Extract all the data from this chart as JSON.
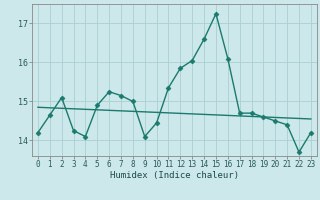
{
  "xlabel": "Humidex (Indice chaleur)",
  "bg_color": "#cce8ea",
  "line_color": "#1a7a6e",
  "grid_color": "#aacfd0",
  "spine_color": "#888888",
  "xlim": [
    -0.5,
    23.5
  ],
  "ylim": [
    13.6,
    17.5
  ],
  "yticks": [
    14,
    15,
    16,
    17
  ],
  "xticks": [
    0,
    1,
    2,
    3,
    4,
    5,
    6,
    7,
    8,
    9,
    10,
    11,
    12,
    13,
    14,
    15,
    16,
    17,
    18,
    19,
    20,
    21,
    22,
    23
  ],
  "series1_x": [
    0,
    1,
    2,
    3,
    4,
    5,
    6,
    7,
    8,
    9,
    10,
    11,
    12,
    13,
    14,
    15,
    16,
    17,
    18,
    19,
    20,
    21,
    22,
    23
  ],
  "series1_y": [
    14.2,
    14.65,
    15.1,
    14.25,
    14.1,
    14.9,
    15.25,
    15.15,
    15.0,
    14.1,
    14.45,
    15.35,
    15.85,
    16.05,
    16.6,
    17.25,
    16.1,
    14.7,
    14.7,
    14.6,
    14.5,
    14.4,
    13.7,
    14.2
  ],
  "series2_x": [
    0,
    23
  ],
  "series2_y": [
    14.85,
    14.55
  ],
  "marker_size": 2.5,
  "line_width": 1.0,
  "tick_fontsize": 5.5,
  "xlabel_fontsize": 6.5
}
